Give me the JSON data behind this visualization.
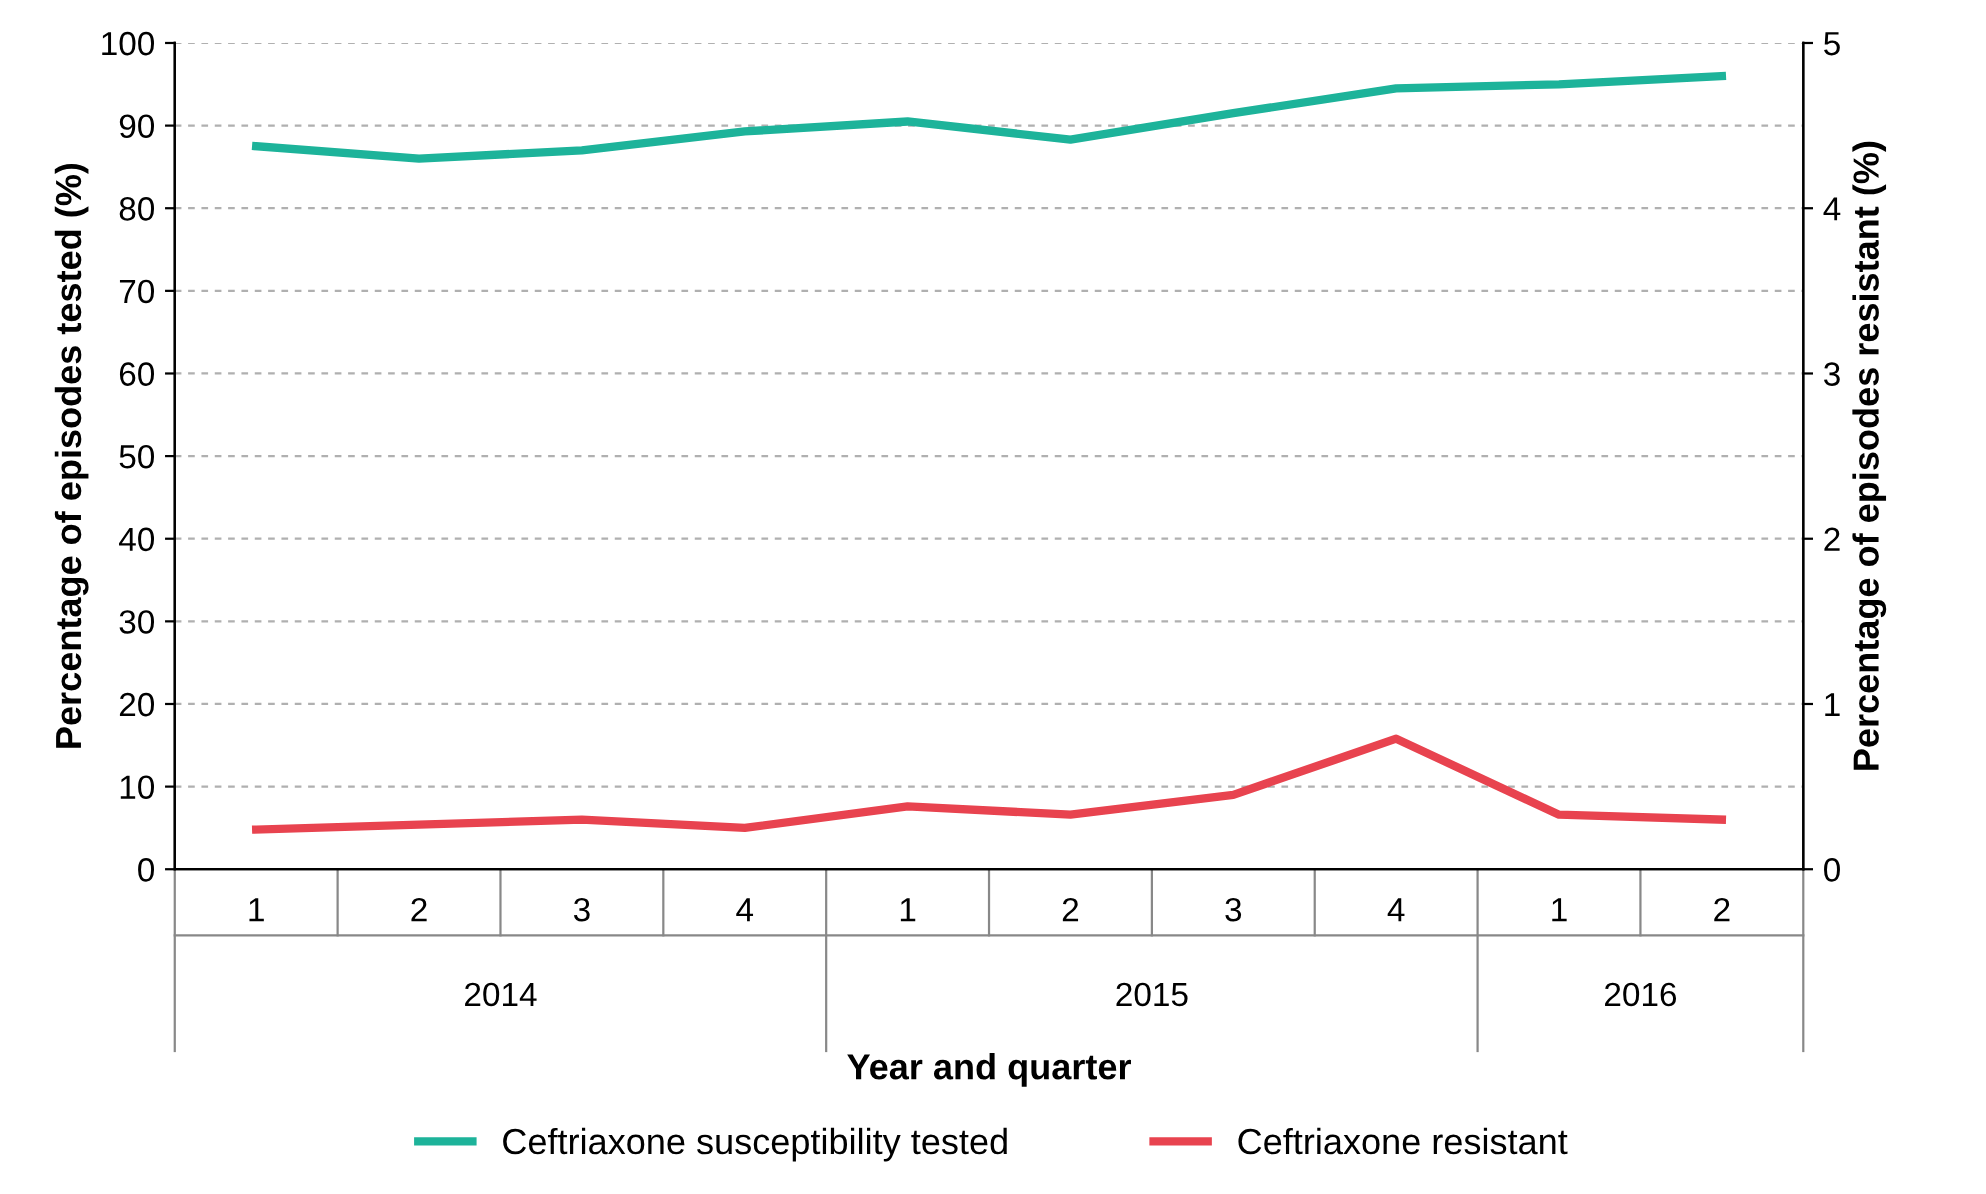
{
  "chart_data": {
    "type": "line",
    "categories": [
      "1",
      "2",
      "3",
      "4",
      "1",
      "2",
      "3",
      "4",
      "1",
      "2"
    ],
    "xlabel": "Year and quarter",
    "ylabel": "Percentage of episodes tested (%)",
    "y2label": "Percentage of episodes resistant (%)",
    "annotations": [
      "2014",
      "2015",
      "2016"
    ],
    "series": [
      {
        "name": "Ceftriaxone susceptibility tested",
        "color": "#1db39a",
        "values": [
          87.5,
          86,
          87,
          89.3,
          90.5,
          88.3,
          91.5,
          94.5,
          95,
          96
        ]
      },
      {
        "name": "Ceftriaxone resistant",
        "color": "#e8434f",
        "axis": "y2",
        "values": [
          0.24,
          0.27,
          0.3,
          0.25,
          0.38,
          0.33,
          0.45,
          0.79,
          0.33,
          0.3
        ]
      }
    ],
    "ylim": [
      0,
      100
    ],
    "yticks": [
      0,
      10,
      20,
      30,
      40,
      50,
      60,
      70,
      80,
      90,
      100
    ],
    "y2lim": [
      0,
      5
    ],
    "y2ticks": [
      0,
      1,
      2,
      3,
      4,
      5
    ],
    "grid": "y",
    "legend": "bottom",
    "marker": "none",
    "line_style": "solid"
  }
}
